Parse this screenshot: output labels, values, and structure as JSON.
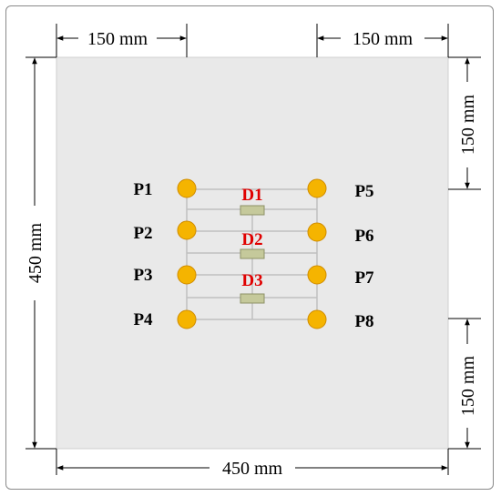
{
  "colors": {
    "panel": "#e9e9e9",
    "point": "#f5b400",
    "point_stroke": "#d08c00",
    "sensor": "#c5c99b",
    "sensor_stroke": "#8d9166",
    "label_red": "#e00000",
    "grid_line": "#c0c0c0"
  },
  "dimensions": {
    "top_left": "150 mm",
    "top_right": "150 mm",
    "right_top": "150 mm",
    "right_bottom": "150 mm",
    "left": "450 mm",
    "bottom": "450 mm"
  },
  "points_left": [
    "P1",
    "P2",
    "P3",
    "P4"
  ],
  "points_right": [
    "P5",
    "P6",
    "P7",
    "P8"
  ],
  "sensors": [
    "D1",
    "D2",
    "D3"
  ]
}
